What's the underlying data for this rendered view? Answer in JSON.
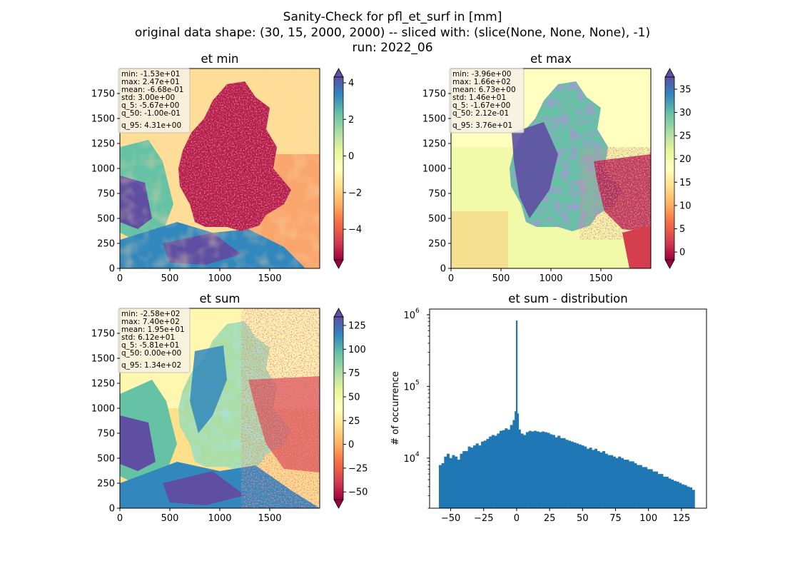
{
  "figure": {
    "suptitle_lines": [
      "Sanity-Check for pfl_et_surf in [mm]",
      "original data shape: (30, 15, 2000, 2000) -- sliced with: (slice(None, None, None), -1)",
      "run: 2022_06"
    ]
  },
  "panels": [
    {
      "key": "et_min",
      "title": "et min",
      "x_ticks": [
        "0",
        "500",
        "1000",
        "1500"
      ],
      "y_ticks": [
        "0",
        "250",
        "500",
        "750",
        "1000",
        "1250",
        "1500",
        "1750"
      ],
      "colorbar_ticks": [
        "−4",
        "−2",
        "0",
        "2",
        "4"
      ],
      "colorbar_range": [
        -5.67,
        4.31
      ],
      "stats": [
        "min: -1.53e+01",
        "max: 2.47e+01",
        "mean: -6.68e-01",
        "std: 3.00e+00",
        "q_5: -5.67e+00",
        "q_50: -1.00e-01",
        "q_95: 4.31e+00"
      ]
    },
    {
      "key": "et_max",
      "title": "et max",
      "x_ticks": [
        "0",
        "500",
        "1000",
        "1500"
      ],
      "y_ticks": [
        "0",
        "250",
        "500",
        "750",
        "1000",
        "1250",
        "1500",
        "1750"
      ],
      "colorbar_ticks": [
        "0",
        "5",
        "10",
        "15",
        "20",
        "25",
        "30",
        "35"
      ],
      "colorbar_range": [
        -1.67,
        37.6
      ],
      "stats": [
        "min: -3.96e+00",
        "max: 1.66e+02",
        "mean: 6.73e+00",
        "std: 1.46e+01",
        "q_5: -1.67e+00",
        "q_50: 2.12e-01",
        "q_95: 3.76e+01"
      ]
    },
    {
      "key": "et_sum",
      "title": "et sum",
      "x_ticks": [
        "0",
        "500",
        "1000",
        "1500"
      ],
      "y_ticks": [
        "0",
        "250",
        "500",
        "750",
        "1000",
        "1250",
        "1500",
        "1750"
      ],
      "colorbar_ticks": [
        "−50",
        "−25",
        "0",
        "25",
        "50",
        "75",
        "100",
        "125"
      ],
      "colorbar_range": [
        -58.1,
        134
      ],
      "stats": [
        "min: -2.58e+02",
        "max: 7.40e+02",
        "mean: 1.95e+01",
        "std: 6.12e+01",
        "q_5: -5.81e+01",
        "q_50: 0.00e+00",
        "q_95: 1.34e+02"
      ]
    }
  ],
  "histogram": {
    "title": "et sum - distribution",
    "ylabel": "# of occurrence",
    "x_ticks": [
      "−50",
      "−25",
      "0",
      "25",
      "50",
      "75",
      "100",
      "125"
    ],
    "y_tick_bases": [
      "10",
      "10",
      "10"
    ],
    "y_tick_exponents": [
      "4",
      "5",
      "6"
    ]
  },
  "chart_data": [
    {
      "type": "heatmap",
      "title": "et min",
      "xlim": [
        0,
        2000
      ],
      "ylim": [
        0,
        2000
      ],
      "colormap": "Spectral",
      "colorbar_range": [
        -5.67,
        4.31
      ],
      "colorbar_extend": "both"
    },
    {
      "type": "heatmap",
      "title": "et max",
      "xlim": [
        0,
        2000
      ],
      "ylim": [
        0,
        2000
      ],
      "colormap": "Spectral",
      "colorbar_range": [
        -1.67,
        37.6
      ],
      "colorbar_extend": "both"
    },
    {
      "type": "heatmap",
      "title": "et sum",
      "xlim": [
        0,
        2000
      ],
      "ylim": [
        0,
        2000
      ],
      "colormap": "Spectral",
      "colorbar_range": [
        -58.1,
        134
      ],
      "colorbar_extend": "both"
    },
    {
      "type": "bar",
      "title": "et sum - distribution",
      "ylabel": "# of occurrence",
      "yscale": "log",
      "xlim": [
        -66,
        144
      ],
      "ylim": [
        2000,
        1200000
      ],
      "color": "#1f77b4",
      "bin_range": [
        -58,
        134
      ],
      "bin_width": 1,
      "series": [
        {
          "x": [
            -58,
            -56,
            -54,
            -52,
            -50,
            -48,
            -46,
            -44,
            -42,
            -40,
            -38,
            -36,
            -34,
            -32,
            -30,
            -28,
            -26,
            -24,
            -22,
            -20,
            -18,
            -16,
            -14,
            -12,
            -10,
            -8,
            -6,
            -4,
            -2,
            -1,
            0,
            1,
            2,
            4,
            6,
            8,
            10,
            12,
            14,
            16,
            18,
            20,
            22,
            24,
            26,
            28,
            30,
            32,
            34,
            36,
            38,
            40,
            42,
            44,
            46,
            48,
            50,
            52,
            54,
            56,
            58,
            60,
            62,
            64,
            66,
            68,
            70,
            72,
            74,
            76,
            78,
            80,
            82,
            84,
            86,
            88,
            90,
            92,
            94,
            96,
            98,
            100,
            102,
            104,
            106,
            108,
            110,
            112,
            114,
            116,
            118,
            120,
            122,
            124,
            126,
            128,
            130,
            132,
            134
          ],
          "values": [
            8000,
            8500,
            10500,
            11500,
            10000,
            11000,
            10500,
            9500,
            11500,
            12500,
            12500,
            14500,
            14000,
            15000,
            16000,
            15000,
            17000,
            17500,
            18500,
            20000,
            21000,
            20500,
            22000,
            24000,
            24500,
            26000,
            25000,
            29000,
            34000,
            45000,
            830000,
            42000,
            25000,
            22000,
            21000,
            23000,
            24000,
            23500,
            24000,
            23500,
            23000,
            23500,
            23000,
            22500,
            21500,
            21000,
            19500,
            20500,
            19000,
            19000,
            18000,
            17500,
            17000,
            16500,
            16000,
            15500,
            15000,
            14500,
            13500,
            14000,
            13000,
            13500,
            12500,
            12000,
            12500,
            11500,
            11000,
            11000,
            10500,
            10000,
            10500,
            10000,
            9500,
            9500,
            9000,
            9000,
            8500,
            8000,
            8000,
            7500,
            7500,
            7000,
            7000,
            6500,
            6500,
            6000,
            6000,
            5500,
            5500,
            5200,
            5000,
            4800,
            4700,
            4500,
            4300,
            4200,
            4000,
            3900,
            3600
          ]
        }
      ]
    }
  ]
}
